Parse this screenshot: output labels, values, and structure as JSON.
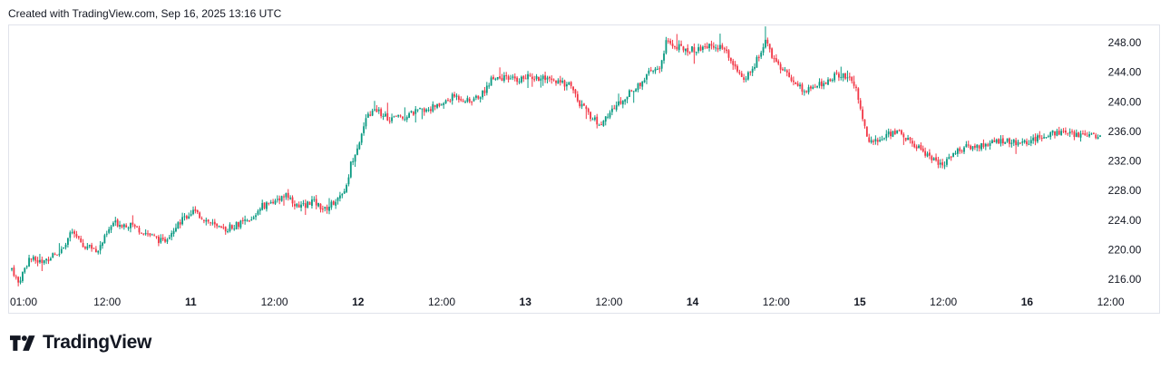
{
  "header": {
    "text": "Created with TradingView.com, Sep 16, 2025 13:16 UTC"
  },
  "brand": {
    "name": "TradingView",
    "logo_icon": "tradingview-logo-icon"
  },
  "colors": {
    "up": "#089981",
    "down": "#f23645",
    "text": "#131722",
    "border": "#e0e3eb"
  },
  "chart_data": {
    "type": "candlestick",
    "grid": false,
    "y_axis": {
      "position": "right",
      "ylim": [
        214,
        250
      ],
      "ticks": [
        "216.00",
        "220.00",
        "224.00",
        "228.00",
        "232.00",
        "236.00",
        "240.00",
        "244.00",
        "248.00"
      ]
    },
    "x_axis": {
      "ticks": [
        {
          "label": "01:00",
          "bold": false
        },
        {
          "label": "12:00",
          "bold": false
        },
        {
          "label": "11",
          "bold": true
        },
        {
          "label": "12:00",
          "bold": false
        },
        {
          "label": "12",
          "bold": true
        },
        {
          "label": "12:00",
          "bold": false
        },
        {
          "label": "13",
          "bold": true
        },
        {
          "label": "12:00",
          "bold": false
        },
        {
          "label": "14",
          "bold": true
        },
        {
          "label": "12:00",
          "bold": false
        },
        {
          "label": "15",
          "bold": true
        },
        {
          "label": "12:00",
          "bold": false
        },
        {
          "label": "16",
          "bold": true
        },
        {
          "label": "12:00",
          "bold": false
        }
      ]
    },
    "close_path": [
      [
        0,
        217.5
      ],
      [
        3,
        215.5
      ],
      [
        8,
        218.8
      ],
      [
        14,
        218.3
      ],
      [
        22,
        219.8
      ],
      [
        28,
        222.4
      ],
      [
        33,
        220.5
      ],
      [
        40,
        220.0
      ],
      [
        47,
        223.6
      ],
      [
        55,
        223.3
      ],
      [
        62,
        222.3
      ],
      [
        70,
        221.0
      ],
      [
        77,
        223.6
      ],
      [
        84,
        225.2
      ],
      [
        90,
        224.0
      ],
      [
        97,
        222.6
      ],
      [
        104,
        223.4
      ],
      [
        111,
        223.9
      ],
      [
        115,
        225.8
      ],
      [
        121,
        226.5
      ],
      [
        127,
        227.6
      ],
      [
        133,
        225.6
      ],
      [
        139,
        226.6
      ],
      [
        145,
        225.4
      ],
      [
        151,
        227.0
      ],
      [
        155,
        228.5
      ],
      [
        157,
        231.6
      ],
      [
        161,
        234.8
      ],
      [
        165,
        238.2
      ],
      [
        169,
        238.9
      ],
      [
        175,
        237.7
      ],
      [
        181,
        238.0
      ],
      [
        187,
        238.6
      ],
      [
        193,
        239.1
      ],
      [
        199,
        239.6
      ],
      [
        205,
        240.8
      ],
      [
        212,
        240.0
      ],
      [
        218,
        241.1
      ],
      [
        223,
        243.5
      ],
      [
        229,
        243.1
      ],
      [
        234,
        243.0
      ],
      [
        240,
        243.4
      ],
      [
        247,
        243.0
      ],
      [
        253,
        242.5
      ],
      [
        259,
        242.4
      ],
      [
        262,
        240.0
      ],
      [
        268,
        238.1
      ],
      [
        272,
        236.8
      ],
      [
        277,
        238.5
      ],
      [
        283,
        240.5
      ],
      [
        289,
        241.8
      ],
      [
        294,
        243.6
      ],
      [
        300,
        244.6
      ],
      [
        303,
        248.0
      ],
      [
        306,
        247.6
      ],
      [
        311,
        247.2
      ],
      [
        317,
        247.0
      ],
      [
        323,
        247.6
      ],
      [
        329,
        247.2
      ],
      [
        335,
        244.9
      ],
      [
        339,
        242.6
      ],
      [
        344,
        245.0
      ],
      [
        349,
        248.1
      ],
      [
        352,
        246.3
      ],
      [
        357,
        244.3
      ],
      [
        362,
        242.8
      ],
      [
        367,
        241.4
      ],
      [
        372,
        242.0
      ],
      [
        377,
        242.8
      ],
      [
        382,
        243.6
      ],
      [
        388,
        243.5
      ],
      [
        391,
        241.6
      ],
      [
        394,
        237.6
      ],
      [
        397,
        234.8
      ],
      [
        401,
        234.6
      ],
      [
        406,
        235.7
      ],
      [
        411,
        236.0
      ],
      [
        416,
        234.5
      ],
      [
        421,
        233.6
      ],
      [
        426,
        232.4
      ],
      [
        431,
        231.3
      ],
      [
        435,
        232.9
      ],
      [
        441,
        233.8
      ],
      [
        447,
        234.0
      ],
      [
        453,
        234.4
      ],
      [
        459,
        234.8
      ],
      [
        465,
        234.4
      ],
      [
        470,
        234.6
      ],
      [
        476,
        235.1
      ],
      [
        482,
        235.9
      ],
      [
        488,
        235.7
      ],
      [
        494,
        235.5
      ],
      [
        500,
        235.8
      ],
      [
        504,
        235.2
      ]
    ],
    "candle_count": 505
  }
}
